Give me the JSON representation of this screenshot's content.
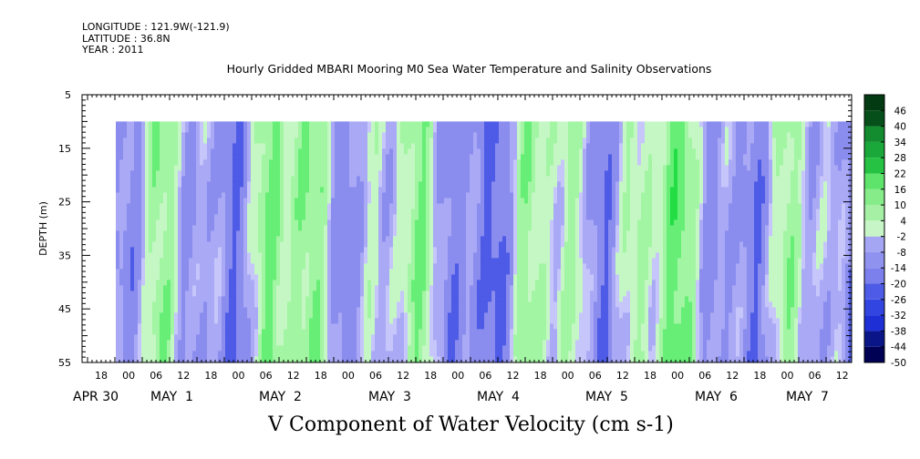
{
  "header": {
    "longitude": "LONGITUDE : 121.9W(-121.9)",
    "latitude": "LATITUDE : 36.8N",
    "year": "YEAR : 2011"
  },
  "chart_data": {
    "type": "heatmap",
    "title": "Hourly Gridded MBARI Mooring M0 Sea Water Temperature and Salinity Observations",
    "xlabel": "V Component of Water Velocity (cm s-1)",
    "ylabel": "DEPTH (m)",
    "ylim": [
      55,
      5
    ],
    "y_ticks": [
      5,
      15,
      25,
      35,
      45,
      55
    ],
    "x_hour_labels": [
      "18",
      "00",
      "06",
      "12",
      "18",
      "00",
      "06",
      "12",
      "18",
      "00",
      "06",
      "12",
      "18",
      "00",
      "06",
      "12",
      "18",
      "00",
      "06",
      "12",
      "18",
      "00",
      "06",
      "12",
      "18",
      "00",
      "06",
      "12"
    ],
    "x_day_labels": [
      "APR 30",
      "MAY  1",
      "MAY  2",
      "MAY  3",
      "MAY  4",
      "MAY  5",
      "MAY  6",
      "MAY  7"
    ],
    "data_depth_range": [
      10,
      55
    ],
    "colorbar": {
      "labels": [
        "46",
        "40",
        "34",
        "28",
        "22",
        "16",
        "10",
        "4",
        "-2",
        "-8",
        "-14",
        "-20",
        "-26",
        "-32",
        "-38",
        "-44",
        "-50"
      ],
      "range": [
        -50,
        52
      ],
      "step": 6
    },
    "colors": {
      "positive": "#22dd55",
      "light_positive": "#aaffaa",
      "negative": "#8888ee",
      "light_negative": "#bbbbff"
    }
  }
}
